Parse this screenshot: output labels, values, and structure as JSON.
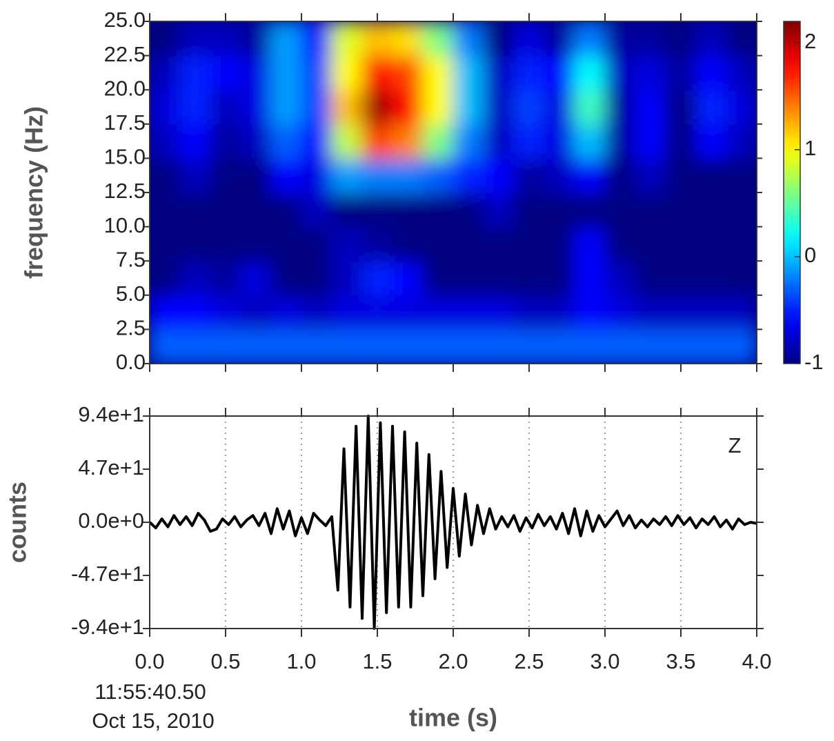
{
  "chart_data": [
    {
      "type": "heatmap",
      "y_label": "frequency (Hz)",
      "x": [
        0.1,
        0.3,
        0.5,
        0.7,
        0.9,
        1.1,
        1.3,
        1.5,
        1.7,
        1.9,
        2.1,
        2.3,
        2.5,
        2.7,
        2.9,
        3.1,
        3.3,
        3.5,
        3.7,
        3.9
      ],
      "y": [
        1.25,
        3.75,
        6.25,
        8.75,
        11.25,
        13.75,
        16.25,
        18.75,
        21.25,
        23.75
      ],
      "z": [
        [
          -0.3,
          -0.3,
          -0.3,
          -0.3,
          -0.3,
          -0.3,
          -0.3,
          -0.3,
          -0.3,
          -0.3,
          -0.3,
          -0.3,
          -0.3,
          -0.3,
          -0.3,
          -0.3,
          -0.3,
          -0.3,
          -0.3,
          -0.3
        ],
        [
          -0.6,
          -0.6,
          -0.7,
          -0.8,
          -0.7,
          -0.8,
          -0.7,
          -0.7,
          -0.7,
          -0.7,
          -0.7,
          -0.7,
          -0.8,
          -0.8,
          -0.6,
          -0.7,
          -0.8,
          -0.8,
          -0.8,
          -0.8
        ],
        [
          -1,
          -0.8,
          -0.9,
          -0.7,
          -1,
          -1,
          -0.8,
          -0.5,
          -0.6,
          -1,
          -1,
          -1,
          -1,
          -1,
          -0.6,
          -0.8,
          -1,
          -1,
          -1,
          -1
        ],
        [
          -1,
          -1,
          -1,
          -1,
          -1,
          -1,
          -0.8,
          -0.9,
          -1,
          -1,
          -1,
          -1,
          -1,
          -1,
          -0.6,
          -1,
          -1,
          -1,
          -1,
          -1
        ],
        [
          -1,
          -1,
          -1,
          -1,
          -1,
          -0.8,
          -1,
          -1,
          -1,
          -1,
          -1,
          -0.8,
          -1,
          -1,
          -1,
          -1,
          -1,
          -1,
          -1,
          -1
        ],
        [
          -1,
          -0.8,
          -1,
          -1,
          -0.6,
          -0.7,
          -0.1,
          -0.2,
          -0.2,
          -0.3,
          -0.5,
          -0.6,
          -0.9,
          -0.8,
          -0.6,
          -1,
          -0.8,
          -1,
          -1,
          -1
        ],
        [
          -0.8,
          -0.6,
          -0.9,
          -0.8,
          -0.3,
          -0.6,
          0.8,
          1.6,
          1.4,
          0.6,
          -0.2,
          -0.8,
          -0.5,
          -0.7,
          0.0,
          -0.9,
          -0.6,
          -1,
          -0.6,
          -0.8
        ],
        [
          -0.7,
          -0.5,
          -0.8,
          -0.7,
          -0.1,
          -0.4,
          1.2,
          2.1,
          1.8,
          1.0,
          0.0,
          -0.8,
          -0.4,
          -0.7,
          0.4,
          -0.9,
          -0.6,
          -1,
          -0.5,
          -0.7
        ],
        [
          -0.8,
          -0.5,
          -0.6,
          -0.7,
          -0.1,
          -0.4,
          1.0,
          1.8,
          1.6,
          1.0,
          0.0,
          -0.8,
          -0.5,
          -0.6,
          0.2,
          -0.8,
          -0.7,
          -0.9,
          -0.6,
          -0.8
        ],
        [
          -1,
          -0.8,
          -0.8,
          -0.9,
          -0.1,
          -0.6,
          0.9,
          1.2,
          1.1,
          0.6,
          -0.2,
          -1,
          -0.7,
          -0.9,
          -0.2,
          -0.9,
          -0.9,
          -1,
          -0.8,
          -1
        ]
      ],
      "xlim": [
        0,
        4
      ],
      "ylim": [
        0,
        25
      ],
      "yticks": [
        {
          "value": 0,
          "label": "0.0"
        },
        2.5,
        {
          "value": 5,
          "label": "5.0"
        },
        7.5,
        {
          "value": 10,
          "label": "10.0"
        },
        12.5,
        {
          "value": 15,
          "label": "15.0"
        },
        17.5,
        {
          "value": 20,
          "label": "20.0"
        },
        22.5,
        {
          "value": 25,
          "label": "25.0"
        }
      ],
      "zlim": [
        -1,
        2.2
      ],
      "zticks": [
        -1,
        0,
        1,
        2
      ],
      "colormap": "jet"
    },
    {
      "type": "line",
      "y_label": "counts",
      "x_label": "time (s)",
      "channel": "Z",
      "start_time": "11:55:40.50",
      "start_date": "Oct 15, 2010",
      "color": "#000000",
      "x": [
        0,
        0.04,
        0.08,
        0.12,
        0.16,
        0.2,
        0.24,
        0.28,
        0.32,
        0.36,
        0.4,
        0.44,
        0.48,
        0.52,
        0.56,
        0.6,
        0.64,
        0.68,
        0.72,
        0.76,
        0.8,
        0.84,
        0.88,
        0.92,
        0.96,
        1,
        1.04,
        1.08,
        1.12,
        1.16,
        1.2,
        1.24,
        1.28,
        1.32,
        1.36,
        1.4,
        1.44,
        1.48,
        1.52,
        1.56,
        1.6,
        1.64,
        1.68,
        1.72,
        1.76,
        1.8,
        1.84,
        1.88,
        1.92,
        1.96,
        2,
        2.04,
        2.08,
        2.12,
        2.16,
        2.2,
        2.24,
        2.28,
        2.32,
        2.36,
        2.4,
        2.44,
        2.48,
        2.52,
        2.56,
        2.6,
        2.64,
        2.68,
        2.72,
        2.76,
        2.8,
        2.84,
        2.88,
        2.92,
        2.96,
        3,
        3.04,
        3.08,
        3.12,
        3.16,
        3.2,
        3.24,
        3.28,
        3.32,
        3.36,
        3.4,
        3.44,
        3.48,
        3.52,
        3.56,
        3.6,
        3.64,
        3.68,
        3.72,
        3.76,
        3.8,
        3.84,
        3.88,
        3.92,
        3.96,
        4
      ],
      "values": [
        0,
        -5,
        3,
        -4,
        6,
        -2,
        5,
        -3,
        8,
        2,
        -8,
        -6,
        3,
        -2,
        5,
        -4,
        2,
        6,
        -3,
        8,
        -10,
        12,
        -6,
        10,
        -12,
        4,
        -10,
        8,
        2,
        -3,
        5,
        -60,
        65,
        -75,
        85,
        -85,
        94,
        -94,
        88,
        -80,
        85,
        -75,
        80,
        -75,
        70,
        -65,
        60,
        -50,
        45,
        -40,
        30,
        -30,
        25,
        -20,
        15,
        -10,
        12,
        -6,
        5,
        -4,
        6,
        -8,
        4,
        -5,
        7,
        -3,
        5,
        -6,
        8,
        -10,
        12,
        -12,
        10,
        -8,
        6,
        -4,
        3,
        10,
        -3,
        6,
        -5,
        2,
        -4,
        3,
        -2,
        5,
        -3,
        6,
        -2,
        4,
        -5,
        3,
        -2,
        5,
        -4,
        2,
        -6,
        3,
        -2,
        0,
        -1
      ],
      "xlim": [
        0,
        4
      ],
      "ylim": [
        -94,
        94
      ],
      "xticks": [
        {
          "value": 0,
          "label": "0.0"
        },
        0.5,
        {
          "value": 1,
          "label": "1.0"
        },
        1.5,
        {
          "value": 2,
          "label": "2.0"
        },
        2.5,
        {
          "value": 3,
          "label": "3.0"
        },
        3.5,
        {
          "value": 4,
          "label": "4.0"
        }
      ],
      "yticks": [
        {
          "value": -94,
          "label": "-9.4e+1"
        },
        {
          "value": -47,
          "label": "-4.7e+1"
        },
        {
          "value": 0,
          "label": "0.0e+0"
        },
        {
          "value": 47,
          "label": "4.7e+1"
        },
        {
          "value": 94,
          "label": "9.4e+1"
        }
      ],
      "grid": "x"
    }
  ]
}
